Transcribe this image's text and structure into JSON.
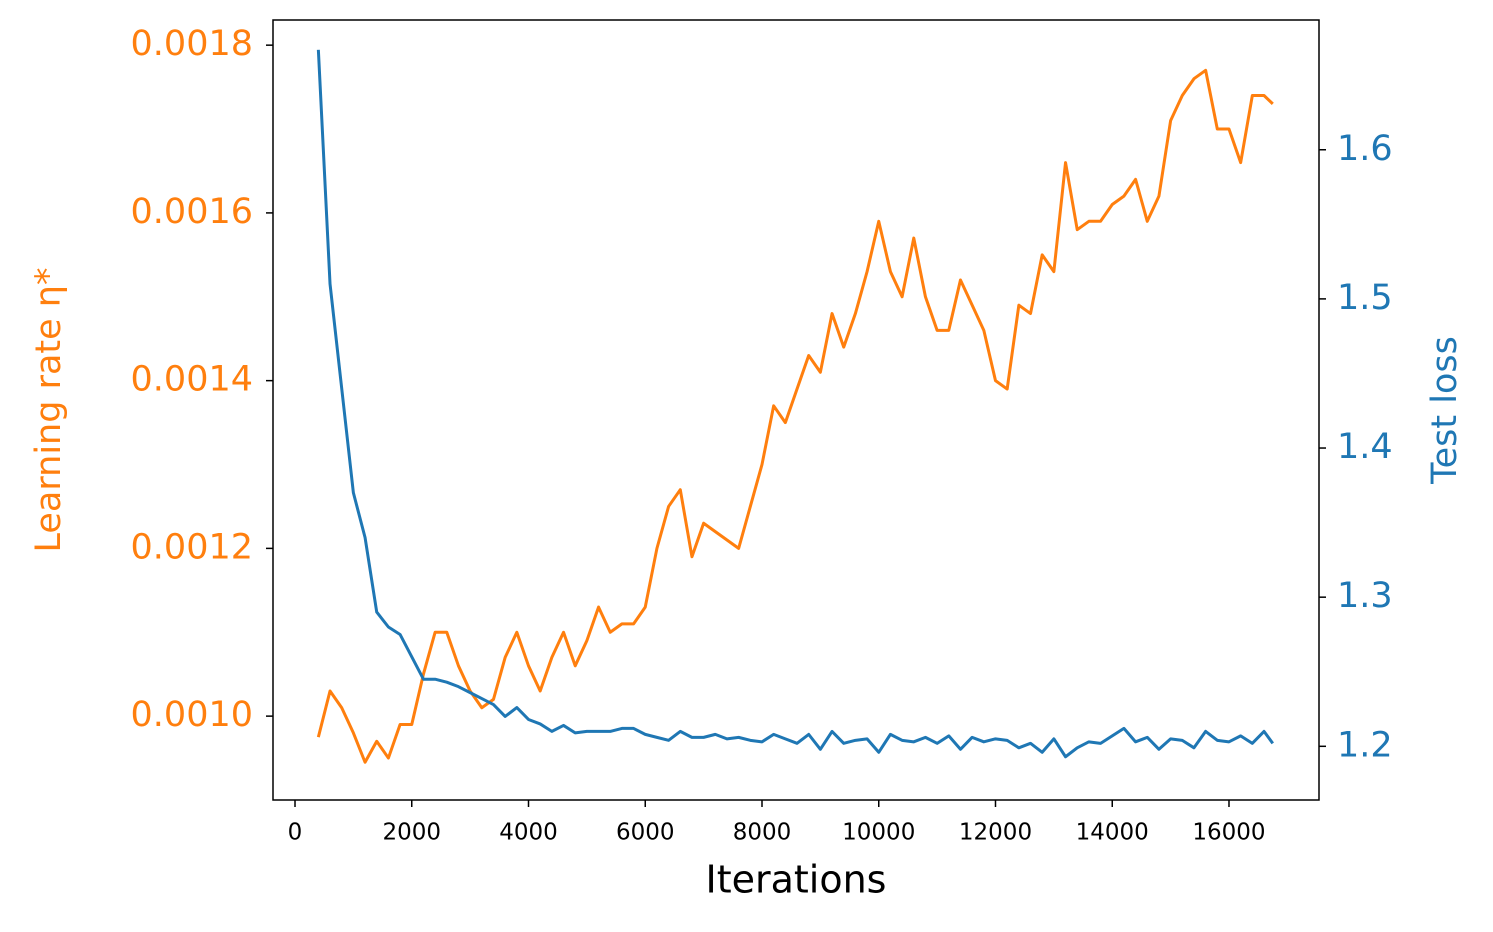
{
  "chart_data": {
    "type": "line",
    "xlabel": "Iterations",
    "ylabel": "Learning rate η*",
    "y2label": "Test loss",
    "x": [
      400,
      600,
      800,
      1000,
      1200,
      1400,
      1600,
      1800,
      2000,
      2200,
      2400,
      2600,
      2800,
      3000,
      3200,
      3400,
      3600,
      3800,
      4000,
      4200,
      4400,
      4600,
      4800,
      5000,
      5200,
      5400,
      5600,
      5800,
      6000,
      6200,
      6400,
      6600,
      6800,
      7000,
      7200,
      7400,
      7600,
      7800,
      8000,
      8200,
      8400,
      8600,
      8800,
      9000,
      9200,
      9400,
      9600,
      9800,
      10000,
      10200,
      10400,
      10600,
      10800,
      11000,
      11200,
      11400,
      11600,
      11800,
      12000,
      12200,
      12400,
      12600,
      12800,
      13000,
      13200,
      13400,
      13600,
      13800,
      14000,
      14200,
      14400,
      14600,
      14800,
      15000,
      15200,
      15400,
      15600,
      15800,
      16000,
      16200,
      16400,
      16600,
      16750
    ],
    "series": [
      {
        "name": "Learning rate",
        "color": "#ff7f0e",
        "axis": "y",
        "values": [
          0.000975,
          0.00103,
          0.00101,
          0.00098,
          0.000945,
          0.00097,
          0.00095,
          0.00099,
          0.00099,
          0.00105,
          0.0011,
          0.0011,
          0.00106,
          0.00103,
          0.00101,
          0.00102,
          0.00107,
          0.0011,
          0.00106,
          0.00103,
          0.00107,
          0.0011,
          0.00106,
          0.00109,
          0.00113,
          0.0011,
          0.00111,
          0.00111,
          0.00113,
          0.0012,
          0.00125,
          0.00127,
          0.00119,
          0.00123,
          0.00122,
          0.00121,
          0.0012,
          0.00125,
          0.0013,
          0.00137,
          0.00135,
          0.00139,
          0.00143,
          0.00141,
          0.00148,
          0.00144,
          0.00148,
          0.00153,
          0.00159,
          0.00153,
          0.0015,
          0.00157,
          0.0015,
          0.00146,
          0.00146,
          0.00152,
          0.00149,
          0.00146,
          0.0014,
          0.00139,
          0.00149,
          0.00148,
          0.00155,
          0.00153,
          0.00166,
          0.00158,
          0.00159,
          0.00159,
          0.00161,
          0.00162,
          0.00164,
          0.00159,
          0.00162,
          0.00171,
          0.00174,
          0.00176,
          0.00177,
          0.0017,
          0.0017,
          0.00166,
          0.00174,
          0.00174,
          0.00173
        ]
      },
      {
        "name": "Test loss",
        "color": "#1f77b4",
        "axis": "y2",
        "values": [
          1.667,
          1.51,
          1.44,
          1.37,
          1.34,
          1.29,
          1.28,
          1.275,
          1.26,
          1.245,
          1.245,
          1.243,
          1.24,
          1.236,
          1.232,
          1.228,
          1.22,
          1.226,
          1.218,
          1.215,
          1.21,
          1.214,
          1.209,
          1.21,
          1.21,
          1.21,
          1.212,
          1.212,
          1.208,
          1.206,
          1.204,
          1.21,
          1.206,
          1.206,
          1.208,
          1.205,
          1.206,
          1.204,
          1.203,
          1.208,
          1.205,
          1.202,
          1.208,
          1.198,
          1.21,
          1.202,
          1.204,
          1.205,
          1.196,
          1.208,
          1.204,
          1.203,
          1.206,
          1.202,
          1.207,
          1.198,
          1.206,
          1.203,
          1.205,
          1.204,
          1.199,
          1.202,
          1.196,
          1.205,
          1.193,
          1.199,
          1.203,
          1.202,
          1.207,
          1.212,
          1.203,
          1.206,
          1.198,
          1.205,
          1.204,
          1.199,
          1.21,
          1.204,
          1.203,
          1.207,
          1.202,
          1.21,
          1.202
        ]
      }
    ],
    "xlim": [
      -377,
      17542
    ],
    "xticks": [
      0,
      2000,
      4000,
      6000,
      8000,
      10000,
      12000,
      14000,
      16000
    ],
    "ylim": [
      0.0009,
      0.00183
    ],
    "yticks": [
      {
        "value": 0.001,
        "label": "0.0010"
      },
      {
        "value": 0.0012,
        "label": "0.0012"
      },
      {
        "value": 0.0014,
        "label": "0.0014"
      },
      {
        "value": 0.0016,
        "label": "0.0016"
      },
      {
        "value": 0.0018,
        "label": "0.0018"
      }
    ],
    "y2lim": [
      1.164,
      1.687
    ],
    "y2ticks": [
      1.2,
      1.3,
      1.4,
      1.5,
      1.6
    ],
    "grid": false
  }
}
